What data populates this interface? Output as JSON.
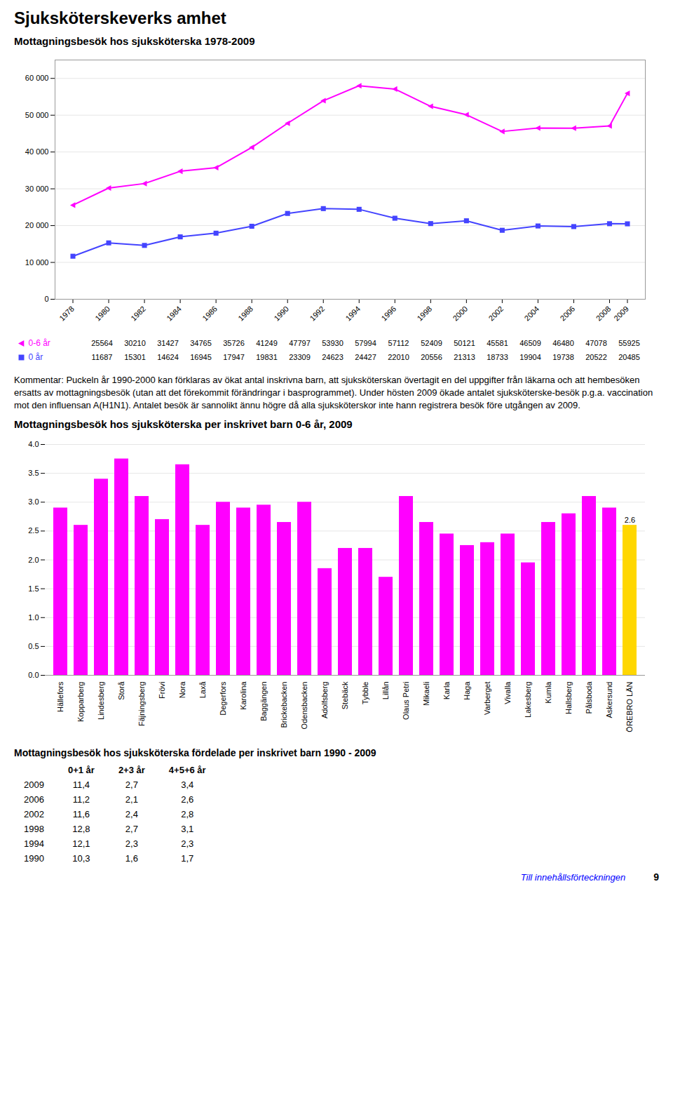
{
  "title": "Sjuksköterskeverks amhet",
  "chart_data": [
    {
      "type": "line",
      "title": "Mottagningsbesök hos sjuksköterska 1978-2009",
      "x": [
        1978,
        1980,
        1982,
        1984,
        1986,
        1988,
        1990,
        1992,
        1994,
        1996,
        1998,
        2000,
        2002,
        2004,
        2006,
        2008,
        2009
      ],
      "xlim": [
        1977,
        2010
      ],
      "xticks": [
        1978,
        1980,
        1982,
        1984,
        1986,
        1988,
        1990,
        1992,
        1994,
        1996,
        1998,
        2000,
        2002,
        2004,
        2006,
        2008,
        2009
      ],
      "ylim": [
        0,
        65000
      ],
      "yticks": [
        0,
        {
          "value": 10000,
          "label": "10 000"
        },
        {
          "value": 20000,
          "label": "20 000"
        },
        {
          "value": 30000,
          "label": "30 000"
        },
        {
          "value": 40000,
          "label": "40 000"
        },
        {
          "value": 50000,
          "label": "50 000"
        },
        {
          "value": 60000,
          "label": "60 000"
        }
      ],
      "grid": true,
      "legend": "bottom",
      "data_labels": true,
      "series": [
        {
          "name": "0-6 år",
          "color": "#FF00FF",
          "marker": "triangle_left",
          "values": [
            25564,
            30210,
            31427,
            34765,
            35726,
            41249,
            47797,
            53930,
            57994,
            57112,
            52409,
            50121,
            45581,
            46509,
            46480,
            47078,
            55925
          ]
        },
        {
          "name": "0 år",
          "color": "#4444FF",
          "marker": "square",
          "values": [
            11687,
            15301,
            14624,
            16945,
            17947,
            19831,
            23309,
            24623,
            24427,
            22010,
            20556,
            21313,
            18733,
            19904,
            19738,
            20522,
            20485
          ]
        }
      ]
    },
    {
      "type": "bar",
      "title": "Mottagningsbesök hos sjuksköterska per inskrivet barn 0-6 år, 2009",
      "categories": [
        "Hällefors",
        "Kopparberg",
        "Lindesberg",
        "Storå",
        "Fäjningsberg",
        "Frövi",
        "Nora",
        "Laxå",
        "Degerfors",
        "Karolina",
        "Baggängen",
        "Brickebacken",
        "Odensbacken",
        "Adolfsberg",
        "Stebäck",
        "Tybble",
        "Lillån",
        "Olaus Petri",
        "Mikaeli",
        "Karla",
        "Haga",
        "Varberget",
        "Vivalla",
        "Lakesberg",
        "Kumla",
        "Hallsberg",
        "Pålsboda",
        "Askersund",
        "ÖREBRO LÄN"
      ],
      "values": [
        2.9,
        2.6,
        3.4,
        3.75,
        3.1,
        2.7,
        3.65,
        2.6,
        3.0,
        2.9,
        2.95,
        2.65,
        3.0,
        1.85,
        2.2,
        2.2,
        1.7,
        3.1,
        2.65,
        2.45,
        2.25,
        2.3,
        2.45,
        1.95,
        2.65,
        2.8,
        3.1,
        2.9,
        2.6
      ],
      "colors": [
        "#FF00FF",
        "#FF00FF",
        "#FF00FF",
        "#FF00FF",
        "#FF00FF",
        "#FF00FF",
        "#FF00FF",
        "#FF00FF",
        "#FF00FF",
        "#FF00FF",
        "#FF00FF",
        "#FF00FF",
        "#FF00FF",
        "#FF00FF",
        "#FF00FF",
        "#FF00FF",
        "#FF00FF",
        "#FF00FF",
        "#FF00FF",
        "#FF00FF",
        "#FF00FF",
        "#FF00FF",
        "#FF00FF",
        "#FF00FF",
        "#FF00FF",
        "#FF00FF",
        "#FF00FF",
        "#FF00FF",
        "#FFD700"
      ],
      "value_labels": [
        null,
        null,
        null,
        null,
        null,
        null,
        null,
        null,
        null,
        null,
        null,
        null,
        null,
        null,
        null,
        null,
        null,
        null,
        null,
        null,
        null,
        null,
        null,
        null,
        null,
        null,
        null,
        null,
        "2.6"
      ],
      "ylim": [
        0,
        4
      ],
      "yticks": [
        {
          "value": 0,
          "label": "0.0"
        },
        0.5,
        {
          "value": 1,
          "label": "1.0"
        },
        1.5,
        {
          "value": 2,
          "label": "2.0"
        },
        2.5,
        {
          "value": 3,
          "label": "3.0"
        },
        3.5,
        {
          "value": 4,
          "label": "4.0"
        }
      ],
      "grid": true
    }
  ],
  "annotations": [
    "Kommentar: Puckeln år 1990-2000 kan förklaras av ökat antal inskrivna barn, att sjuksköterskan övertagit en del uppgifter från läkarna och att hembesöken ersatts av mottagningsbesök (utan att det förekommit förändringar i basprogrammet). Under hösten 2009 ökade antalet sjuksköterske-besök p.g.a. vaccination mot den influensan A(H1N1). Antalet besök är sannolikt ännu högre då alla sjuksköterskor inte hann registrera besök före utgången av 2009."
  ],
  "table": {
    "title": "Mottagningsbesök hos sjuksköterska fördelade per inskrivet barn 1990 - 2009",
    "headers": [
      null,
      "0+1 år",
      "2+3 år",
      "4+5+6 år"
    ],
    "rows": [
      [
        "2009",
        "11,4",
        "2,7",
        "3,4"
      ],
      [
        "2006",
        "11,2",
        "2,1",
        "2,6"
      ],
      [
        "2002",
        "11,6",
        "2,4",
        "2,8"
      ],
      [
        "1998",
        "12,8",
        "2,7",
        "3,1"
      ],
      [
        "1994",
        "12,1",
        "2,3",
        "2,3"
      ],
      [
        "1990",
        "10,3",
        "1,6",
        "1,7"
      ]
    ]
  },
  "footer": "Till innehållsförteckningen",
  "page_number": "9"
}
